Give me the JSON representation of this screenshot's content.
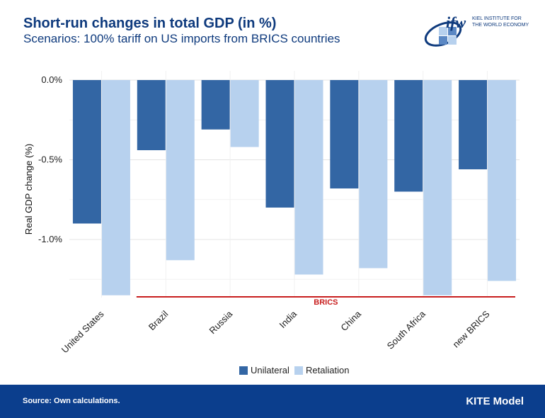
{
  "header": {
    "title": "Short-run changes in total GDP (in %)",
    "subtitle": "Scenarios: 100% tariff on US imports from BRICS countries"
  },
  "logo": {
    "mark": "ifw",
    "line1": "KIEL INSTITUTE FOR",
    "line2": "THE WORLD ECONOMY"
  },
  "footer": {
    "source": "Source: Own calculations.",
    "model": "KITE Model"
  },
  "colors": {
    "unilateral": "#3366a4",
    "retaliation": "#b7d1ee",
    "brics_line": "#c81e1e",
    "title": "#0e3a7d",
    "footer_bg": "#0b3e8d"
  },
  "chart_data": {
    "type": "bar",
    "categories": [
      "United States",
      "Brazil",
      "Russia",
      "India",
      "China",
      "South Africa",
      "new BRICS"
    ],
    "series": [
      {
        "name": "Unilateral",
        "values": [
          -0.9,
          -0.44,
          -0.31,
          -0.8,
          -0.68,
          -0.7,
          -0.56
        ]
      },
      {
        "name": "Retaliation",
        "values": [
          -1.35,
          -1.13,
          -0.42,
          -1.22,
          -1.18,
          -1.35,
          -1.26
        ]
      }
    ],
    "ylabel": "Real GDP change (%)",
    "xlabel": "",
    "yticks": [
      0.0,
      -0.5,
      -1.0
    ],
    "ytick_labels": [
      "0.0%",
      "-0.5%",
      "-1.0%"
    ],
    "ylim": [
      -1.37,
      0.0
    ],
    "grid": true,
    "legend_position": "bottom",
    "annotation": {
      "label": "BRICS",
      "from_category": "Brazil",
      "to_category": "new BRICS"
    }
  }
}
